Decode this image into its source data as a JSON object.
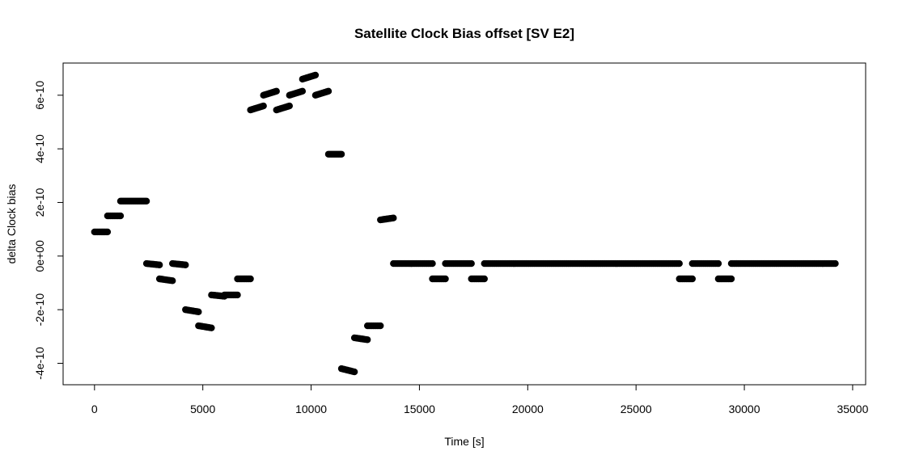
{
  "chart_data": {
    "type": "scatter",
    "title": "Satellite Clock Bias offset [SV E2]",
    "xlabel": "Time [s]",
    "ylabel": "delta Clock bias",
    "xlim": [
      -1450,
      35600
    ],
    "ylim": [
      -4.8e-10,
      7.2e-10
    ],
    "x_ticks": [
      0,
      5000,
      10000,
      15000,
      20000,
      25000,
      30000,
      35000
    ],
    "x_tick_labels": [
      "0",
      "5000",
      "10000",
      "15000",
      "20000",
      "25000",
      "30000",
      "35000"
    ],
    "y_ticks": [
      -4e-10,
      -2e-10,
      0,
      2e-10,
      4e-10,
      6e-10
    ],
    "y_tick_labels": [
      "-4e-10",
      "-2e-10",
      "0e+00",
      "2e-10",
      "4e-10",
      "6e-10"
    ],
    "grid": false,
    "marker_color": "#000000",
    "segments": [
      {
        "x0": 0,
        "x1": 600,
        "y0": 9e-11,
        "y1": 9e-11
      },
      {
        "x0": 600,
        "x1": 1200,
        "y0": 1.5e-10,
        "y1": 1.5e-10
      },
      {
        "x0": 1200,
        "x1": 2400,
        "y0": 2.05e-10,
        "y1": 2.05e-10
      },
      {
        "x0": 2400,
        "x1": 3000,
        "y0": -2.8e-11,
        "y1": -3.3e-11
      },
      {
        "x0": 3000,
        "x1": 3600,
        "y0": -8.5e-11,
        "y1": -9.2e-11
      },
      {
        "x0": 3600,
        "x1": 4200,
        "y0": -2.8e-11,
        "y1": -3.3e-11
      },
      {
        "x0": 4200,
        "x1": 4800,
        "y0": -2e-10,
        "y1": -2.08e-10
      },
      {
        "x0": 4800,
        "x1": 5400,
        "y0": -2.6e-10,
        "y1": -2.68e-10
      },
      {
        "x0": 5400,
        "x1": 6000,
        "y0": -1.45e-10,
        "y1": -1.5e-10
      },
      {
        "x0": 6000,
        "x1": 6600,
        "y0": -1.45e-10,
        "y1": -1.45e-10
      },
      {
        "x0": 6600,
        "x1": 7200,
        "y0": -8.5e-11,
        "y1": -8.5e-11
      },
      {
        "x0": 7200,
        "x1": 7800,
        "y0": 5.45e-10,
        "y1": 5.6e-10
      },
      {
        "x0": 7800,
        "x1": 8400,
        "y0": 6e-10,
        "y1": 6.15e-10
      },
      {
        "x0": 8400,
        "x1": 9000,
        "y0": 5.45e-10,
        "y1": 5.6e-10
      },
      {
        "x0": 9000,
        "x1": 9600,
        "y0": 6e-10,
        "y1": 6.15e-10
      },
      {
        "x0": 9600,
        "x1": 10200,
        "y0": 6.6e-10,
        "y1": 6.75e-10
      },
      {
        "x0": 10200,
        "x1": 10800,
        "y0": 6e-10,
        "y1": 6.15e-10
      },
      {
        "x0": 10800,
        "x1": 11400,
        "y0": 3.8e-10,
        "y1": 3.8e-10
      },
      {
        "x0": 11400,
        "x1": 12000,
        "y0": -4.2e-10,
        "y1": -4.32e-10
      },
      {
        "x0": 12000,
        "x1": 12600,
        "y0": -3.05e-10,
        "y1": -3.12e-10
      },
      {
        "x0": 12600,
        "x1": 13200,
        "y0": -2.6e-10,
        "y1": -2.6e-10
      },
      {
        "x0": 13200,
        "x1": 13800,
        "y0": 1.35e-10,
        "y1": 1.42e-10
      },
      {
        "x0": 13800,
        "x1": 15600,
        "y0": -2.8e-11,
        "y1": -2.8e-11
      },
      {
        "x0": 15600,
        "x1": 16200,
        "y0": -8.5e-11,
        "y1": -8.5e-11
      },
      {
        "x0": 16200,
        "x1": 17400,
        "y0": -2.8e-11,
        "y1": -2.8e-11
      },
      {
        "x0": 17400,
        "x1": 18000,
        "y0": -8.5e-11,
        "y1": -8.5e-11
      },
      {
        "x0": 18000,
        "x1": 27000,
        "y0": -2.8e-11,
        "y1": -2.8e-11
      },
      {
        "x0": 27000,
        "x1": 27600,
        "y0": -8.5e-11,
        "y1": -8.5e-11
      },
      {
        "x0": 27600,
        "x1": 28800,
        "y0": -2.8e-11,
        "y1": -2.8e-11
      },
      {
        "x0": 28800,
        "x1": 29400,
        "y0": -8.5e-11,
        "y1": -8.5e-11
      },
      {
        "x0": 29400,
        "x1": 34200,
        "y0": -2.8e-11,
        "y1": -2.8e-11
      }
    ]
  }
}
